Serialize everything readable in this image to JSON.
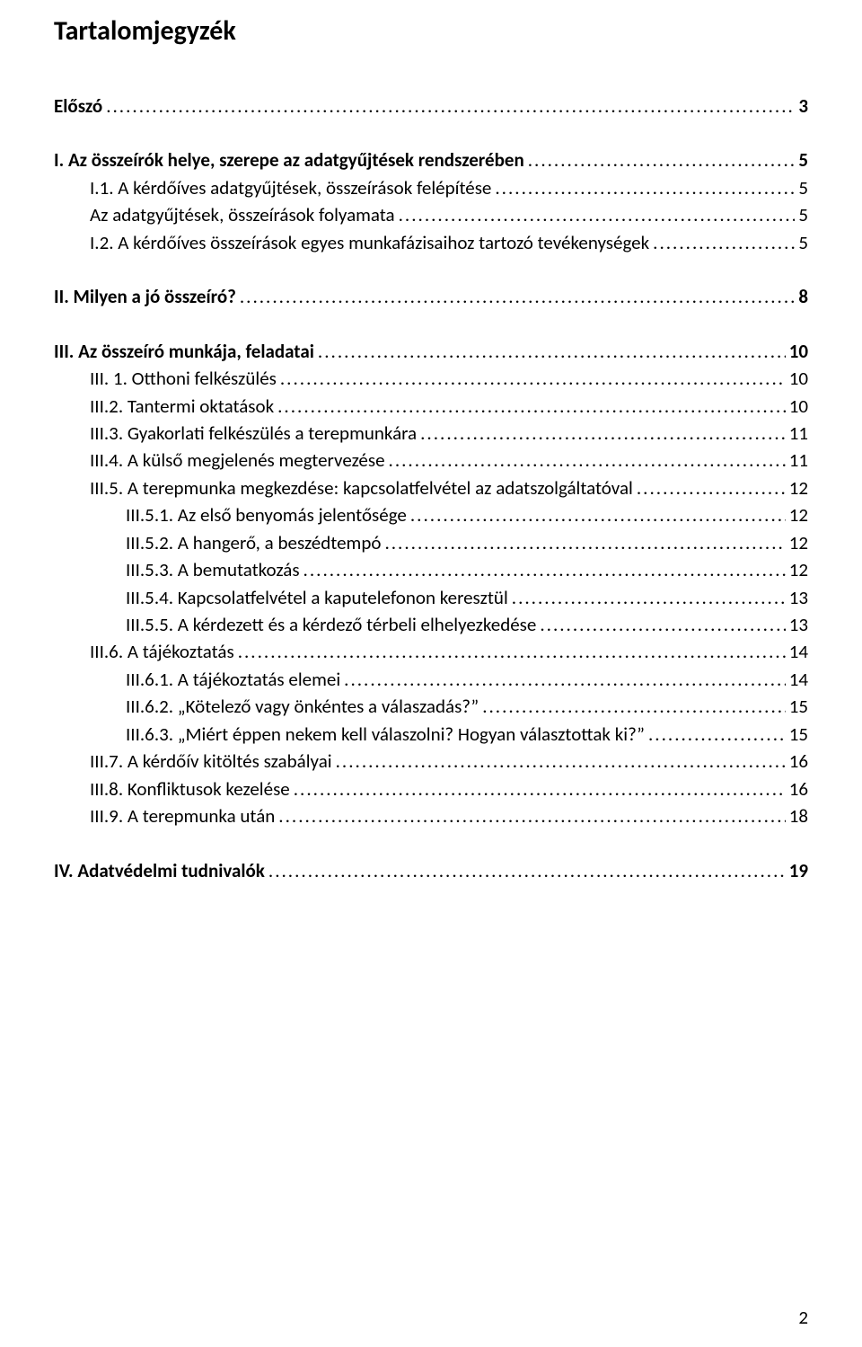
{
  "heading": "Tartalomjegyzék",
  "page_number": "2",
  "entries": [
    {
      "label": "Előszó",
      "page": "3",
      "bold": true,
      "indent": 0,
      "gap": false
    },
    {
      "label": "I. Az összeírók helye, szerepe az adatgyűjtések rendszerében",
      "page": "5",
      "bold": true,
      "indent": 0,
      "gap": true
    },
    {
      "label": "I.1. A kérdőíves adatgyűjtések, összeírások felépítése",
      "page": "5",
      "bold": false,
      "indent": 1,
      "gap": false
    },
    {
      "label": "Az adatgyűjtések, összeírások folyamata",
      "page": "5",
      "bold": false,
      "indent": 1,
      "gap": false
    },
    {
      "label": "I.2. A kérdőíves összeírások egyes munkafázisaihoz tartozó tevékenységek",
      "page": "5",
      "bold": false,
      "indent": 1,
      "gap": false
    },
    {
      "label": "II. Milyen a jó összeíró?",
      "page": "8",
      "bold": true,
      "indent": 0,
      "gap": true
    },
    {
      "label": "III. Az összeíró munkája, feladatai",
      "page": "10",
      "bold": true,
      "indent": 0,
      "gap": true
    },
    {
      "label": "III. 1. Otthoni felkészülés",
      "page": "10",
      "bold": false,
      "indent": 1,
      "gap": false
    },
    {
      "label": "III.2. Tantermi oktatások",
      "page": "10",
      "bold": false,
      "indent": 1,
      "gap": false
    },
    {
      "label": "III.3. Gyakorlati felkészülés a terepmunkára",
      "page": "11",
      "bold": false,
      "indent": 1,
      "gap": false
    },
    {
      "label": "III.4. A külső megjelenés megtervezése",
      "page": "11",
      "bold": false,
      "indent": 1,
      "gap": false
    },
    {
      "label": "III.5. A terepmunka megkezdése: kapcsolatfelvétel az adatszolgáltatóval",
      "page": "12",
      "bold": false,
      "indent": 1,
      "gap": false
    },
    {
      "label": "III.5.1. Az első benyomás jelentősége",
      "page": "12",
      "bold": false,
      "indent": 2,
      "gap": false
    },
    {
      "label": "III.5.2. A hangerő, a beszédtempó",
      "page": "12",
      "bold": false,
      "indent": 2,
      "gap": false
    },
    {
      "label": "III.5.3. A bemutatkozás",
      "page": "12",
      "bold": false,
      "indent": 2,
      "gap": false
    },
    {
      "label": "III.5.4. Kapcsolatfelvétel a kaputelefonon keresztül",
      "page": "13",
      "bold": false,
      "indent": 2,
      "gap": false
    },
    {
      "label": "III.5.5. A kérdezett és a kérdező térbeli elhelyezkedése",
      "page": "13",
      "bold": false,
      "indent": 2,
      "gap": false
    },
    {
      "label": "III.6. A tájékoztatás",
      "page": "14",
      "bold": false,
      "indent": 1,
      "gap": false
    },
    {
      "label": "III.6.1. A tájékoztatás elemei",
      "page": "14",
      "bold": false,
      "indent": 2,
      "gap": false
    },
    {
      "label": "III.6.2. „Kötelező vagy önkéntes a válaszadás?”",
      "page": "15",
      "bold": false,
      "indent": 2,
      "gap": false
    },
    {
      "label": "III.6.3. „Miért éppen nekem kell válaszolni? Hogyan választottak ki?”",
      "page": "15",
      "bold": false,
      "indent": 2,
      "gap": false
    },
    {
      "label": "III.7. A kérdőív kitöltés szabályai",
      "page": "16",
      "bold": false,
      "indent": 1,
      "gap": false
    },
    {
      "label": "III.8. Konfliktusok kezelése",
      "page": "16",
      "bold": false,
      "indent": 1,
      "gap": false
    },
    {
      "label": "III.9. A terepmunka után",
      "page": "18",
      "bold": false,
      "indent": 1,
      "gap": false
    },
    {
      "label": "IV. Adatvédelmi tudnivalók",
      "page": "19",
      "bold": true,
      "indent": 0,
      "gap": true
    }
  ]
}
